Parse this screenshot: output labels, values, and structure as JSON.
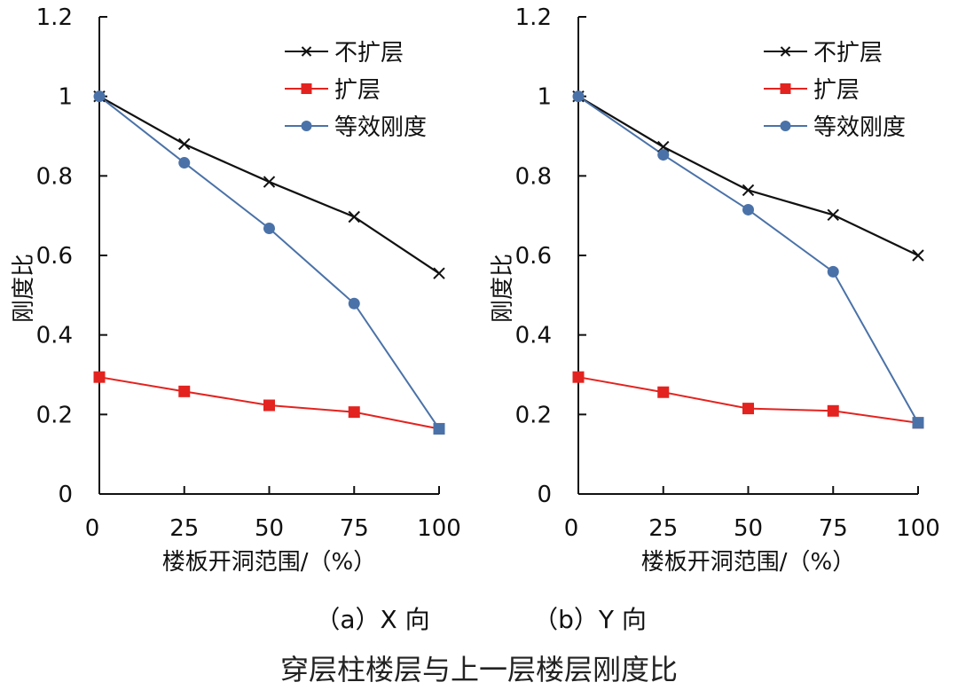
{
  "figure": {
    "title": "穿层柱楼层与上一层楼层刚度比"
  },
  "chart_data": [
    {
      "type": "line",
      "caption": "（a）X 向",
      "title": "",
      "xlabel": "楼板开洞范围/（%）",
      "ylabel": "刚度比",
      "x": [
        0,
        25,
        50,
        75,
        100
      ],
      "xticks": [
        "0",
        "25",
        "50",
        "75",
        "100"
      ],
      "yticks": [
        "0",
        "0.2",
        "0.4",
        "0.6",
        "0.8",
        "1",
        "1.2"
      ],
      "xlim": [
        0,
        100
      ],
      "ylim": [
        0,
        1.2
      ],
      "grid": false,
      "legend_position": "top-right",
      "series": [
        {
          "name": "不扩层",
          "marker": "x",
          "color": "#111111",
          "values": [
            1.0,
            0.88,
            0.785,
            0.697,
            0.555
          ]
        },
        {
          "name": "扩层",
          "marker": "square",
          "color": "#e3231f",
          "values": [
            0.294,
            0.258,
            0.223,
            0.206,
            0.164
          ]
        },
        {
          "name": "等效刚度",
          "marker": "circle",
          "color": "#4a72a8",
          "values": [
            1.0,
            0.833,
            0.668,
            0.479,
            0.164
          ]
        }
      ]
    },
    {
      "type": "line",
      "caption": "（b）Y 向",
      "title": "",
      "xlabel": "楼板开洞范围/（%）",
      "ylabel": "刚度比",
      "x": [
        0,
        25,
        50,
        75,
        100
      ],
      "xticks": [
        "0",
        "25",
        "50",
        "75",
        "100"
      ],
      "yticks": [
        "0",
        "0.2",
        "0.4",
        "0.6",
        "0.8",
        "1",
        "1.2"
      ],
      "xlim": [
        0,
        100
      ],
      "ylim": [
        0,
        1.2
      ],
      "grid": false,
      "legend_position": "top-right",
      "series": [
        {
          "name": "不扩层",
          "marker": "x",
          "color": "#111111",
          "values": [
            1.0,
            0.873,
            0.764,
            0.702,
            0.6
          ]
        },
        {
          "name": "扩层",
          "marker": "square",
          "color": "#e3231f",
          "values": [
            0.294,
            0.256,
            0.215,
            0.209,
            0.179
          ]
        },
        {
          "name": "等效刚度",
          "marker": "circle",
          "color": "#4a72a8",
          "values": [
            1.0,
            0.853,
            0.715,
            0.559,
            0.179
          ]
        }
      ]
    }
  ]
}
